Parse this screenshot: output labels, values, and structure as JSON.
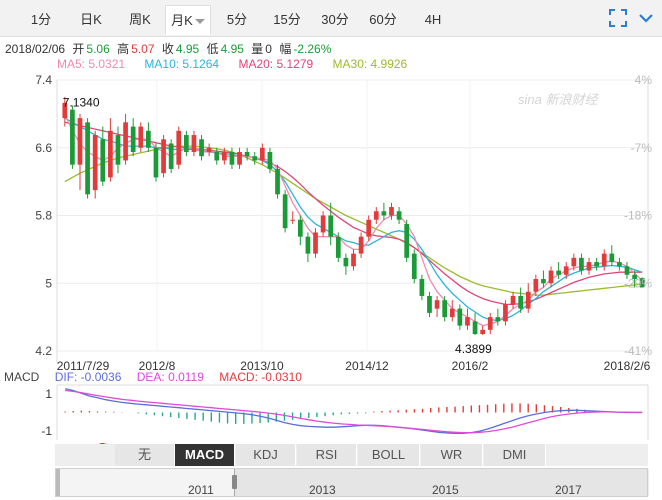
{
  "tabs": [
    {
      "label": "1分",
      "active": false
    },
    {
      "label": "日K",
      "active": false
    },
    {
      "label": "周K",
      "active": false
    },
    {
      "label": "月K",
      "active": true
    },
    {
      "label": "5分",
      "active": false
    },
    {
      "label": "15分",
      "active": false
    },
    {
      "label": "30分",
      "active": false
    },
    {
      "label": "60分",
      "active": false
    },
    {
      "label": "4H",
      "active": false
    }
  ],
  "toolbar": {
    "fullscreen_icon": "fullscreen-icon",
    "menu_icon": "chevron-down-icon"
  },
  "info": {
    "date": "2018/02/06",
    "open_label": "开",
    "open": "5.06",
    "high_label": "高",
    "high": "5.07",
    "close_label": "收",
    "close": "4.95",
    "low_label": "低",
    "low": "4.95",
    "volume_label": "量",
    "volume": "0",
    "change_label": "幅",
    "change": "-2.26%"
  },
  "ma_legend": {
    "ma5": "MA5: 5.0321",
    "ma10": "MA10: 5.1264",
    "ma20": "MA20: 5.1279",
    "ma30": "MA30: 4.9926"
  },
  "watermark": "sina 新浪财经",
  "colors": {
    "up": "#e03c3c",
    "down": "#1b9b37",
    "ma5": "#f08ab0",
    "ma10": "#2bb5d8",
    "ma20": "#e0457a",
    "ma30": "#9bbb2a",
    "dif": "#5b6fd8",
    "dea": "#e04ad8",
    "macd_label": "#e03c3c"
  },
  "macd_legend": {
    "name": "MACD",
    "dif": "DIF: -0.0036",
    "dea": "DEA: 0.0119",
    "macd": "MACD: -0.0310"
  },
  "indicator_tabs": [
    {
      "label": "无",
      "active": false
    },
    {
      "label": "MACD",
      "active": true
    },
    {
      "label": "KDJ",
      "active": false
    },
    {
      "label": "RSI",
      "active": false
    },
    {
      "label": "BOLL",
      "active": false
    },
    {
      "label": "WR",
      "active": false
    },
    {
      "label": "DMI",
      "active": false
    }
  ],
  "indicator_badge": "1",
  "navigator": {
    "year_labels": [
      "2011",
      "2013",
      "2015",
      "2017"
    ]
  },
  "chart_data": [
    {
      "type": "candlestick",
      "title": "",
      "y_ticks": [
        "7.4",
        "6.6",
        "5.8",
        "5",
        "4.2"
      ],
      "y_tick_values": [
        7.4,
        6.6,
        5.8,
        5.0,
        4.2
      ],
      "pct_ticks": [
        "4%",
        "-7%",
        "-18%",
        "-29%",
        "-41%"
      ],
      "x_tick_labels": [
        "2011/7/29",
        "2012/8",
        "2013/10",
        "2014/12",
        "2016/2",
        "2018/2/6"
      ],
      "ylim": [
        4.2,
        7.4
      ],
      "annotations": [
        {
          "label": "7.1340",
          "value": 7.134
        },
        {
          "label": "4.3899",
          "value": 4.3899
        }
      ],
      "candles": [
        [
          6.95,
          7.13,
          7.2,
          6.85
        ],
        [
          7.05,
          6.4,
          7.1,
          6.35
        ],
        [
          6.4,
          6.95,
          7.0,
          6.1
        ],
        [
          6.9,
          6.05,
          6.95,
          6.0
        ],
        [
          6.1,
          6.75,
          6.8,
          6.0
        ],
        [
          6.7,
          6.2,
          6.85,
          6.15
        ],
        [
          6.25,
          6.8,
          6.95,
          6.2
        ],
        [
          6.75,
          6.4,
          6.85,
          6.3
        ],
        [
          6.45,
          6.9,
          7.0,
          6.4
        ],
        [
          6.85,
          6.55,
          6.95,
          6.5
        ],
        [
          6.6,
          6.85,
          6.9,
          6.55
        ],
        [
          6.8,
          6.6,
          6.9,
          6.55
        ],
        [
          6.6,
          6.25,
          6.65,
          6.2
        ],
        [
          6.3,
          6.7,
          6.75,
          6.25
        ],
        [
          6.65,
          6.35,
          6.7,
          6.3
        ],
        [
          6.4,
          6.8,
          6.85,
          6.35
        ],
        [
          6.75,
          6.55,
          6.8,
          6.5
        ],
        [
          6.55,
          6.75,
          6.8,
          6.5
        ],
        [
          6.7,
          6.5,
          6.75,
          6.45
        ],
        [
          6.55,
          6.6,
          6.65,
          6.5
        ],
        [
          6.55,
          6.45,
          6.6,
          6.4
        ],
        [
          6.45,
          6.55,
          6.6,
          6.4
        ],
        [
          6.55,
          6.4,
          6.6,
          6.35
        ],
        [
          6.4,
          6.55,
          6.6,
          6.35
        ],
        [
          6.55,
          6.5,
          6.6,
          6.45
        ],
        [
          6.5,
          6.45,
          6.55,
          6.4
        ],
        [
          6.45,
          6.6,
          6.65,
          6.4
        ],
        [
          6.55,
          6.35,
          6.6,
          6.3
        ],
        [
          6.35,
          6.05,
          6.4,
          6.0
        ],
        [
          6.05,
          5.65,
          6.1,
          5.6
        ],
        [
          5.75,
          5.75,
          5.85,
          5.7
        ],
        [
          5.75,
          5.55,
          5.8,
          5.45
        ],
        [
          5.55,
          5.35,
          5.6,
          5.25
        ],
        [
          5.35,
          5.6,
          5.65,
          5.3
        ],
        [
          5.6,
          5.8,
          5.85,
          5.55
        ],
        [
          5.8,
          5.55,
          5.95,
          5.45
        ],
        [
          5.55,
          5.3,
          5.6,
          5.25
        ],
        [
          5.3,
          5.2,
          5.35,
          5.1
        ],
        [
          5.2,
          5.35,
          5.4,
          5.15
        ],
        [
          5.35,
          5.55,
          5.6,
          5.3
        ],
        [
          5.55,
          5.75,
          5.8,
          5.5
        ],
        [
          5.75,
          5.85,
          5.9,
          5.7
        ],
        [
          5.85,
          5.8,
          5.95,
          5.75
        ],
        [
          5.8,
          5.9,
          5.95,
          5.75
        ],
        [
          5.85,
          5.75,
          5.9,
          5.7
        ],
        [
          5.7,
          5.3,
          5.75,
          5.25
        ],
        [
          5.35,
          5.05,
          5.4,
          5.0
        ],
        [
          5.05,
          4.85,
          5.1,
          4.8
        ],
        [
          4.85,
          4.65,
          4.9,
          4.6
        ],
        [
          4.7,
          4.8,
          4.85,
          4.6
        ],
        [
          4.8,
          4.6,
          4.85,
          4.55
        ],
        [
          4.6,
          4.7,
          4.8,
          4.55
        ],
        [
          4.7,
          4.5,
          4.75,
          4.45
        ],
        [
          4.5,
          4.6,
          4.7,
          4.45
        ],
        [
          4.55,
          4.4,
          4.65,
          4.39
        ],
        [
          4.4,
          4.45,
          4.5,
          4.39
        ],
        [
          4.45,
          4.6,
          4.65,
          4.4
        ],
        [
          4.6,
          4.55,
          4.7,
          4.5
        ],
        [
          4.55,
          4.75,
          4.8,
          4.5
        ],
        [
          4.75,
          4.85,
          4.9,
          4.7
        ],
        [
          4.85,
          4.7,
          4.95,
          4.65
        ],
        [
          4.7,
          4.9,
          5.0,
          4.65
        ],
        [
          4.9,
          5.05,
          5.1,
          4.85
        ],
        [
          5.05,
          5.0,
          5.15,
          4.95
        ],
        [
          5.0,
          5.15,
          5.2,
          4.95
        ],
        [
          5.15,
          5.1,
          5.25,
          5.05
        ],
        [
          5.1,
          5.2,
          5.25,
          5.05
        ],
        [
          5.2,
          5.3,
          5.35,
          5.15
        ],
        [
          5.3,
          5.15,
          5.35,
          5.1
        ],
        [
          5.15,
          5.25,
          5.3,
          5.1
        ],
        [
          5.25,
          5.2,
          5.3,
          5.15
        ],
        [
          5.2,
          5.35,
          5.4,
          5.15
        ],
        [
          5.35,
          5.25,
          5.45,
          5.2
        ],
        [
          5.25,
          5.2,
          5.3,
          5.15
        ],
        [
          5.2,
          5.1,
          5.25,
          5.05
        ],
        [
          5.1,
          5.05,
          5.15,
          4.95
        ],
        [
          5.06,
          4.95,
          5.07,
          4.95
        ]
      ],
      "ma5": [
        7.0,
        6.8,
        6.65,
        6.55,
        6.5,
        6.45,
        6.5,
        6.6,
        6.65,
        6.7,
        6.7,
        6.7,
        6.6,
        6.55,
        6.5,
        6.55,
        6.6,
        6.6,
        6.55,
        6.55,
        6.55,
        6.5,
        6.5,
        6.5,
        6.5,
        6.48,
        6.47,
        6.45,
        6.35,
        6.15,
        5.95,
        5.8,
        5.65,
        5.55,
        5.55,
        5.55,
        5.55,
        5.45,
        5.4,
        5.4,
        5.5,
        5.65,
        5.75,
        5.8,
        5.8,
        5.7,
        5.55,
        5.3,
        5.05,
        4.9,
        4.8,
        4.7,
        4.65,
        4.6,
        4.55,
        4.5,
        4.52,
        4.55,
        4.62,
        4.7,
        4.75,
        4.8,
        4.9,
        4.95,
        5.05,
        5.1,
        5.15,
        5.18,
        5.2,
        5.2,
        5.22,
        5.25,
        5.26,
        5.24,
        5.2,
        5.12,
        5.03
      ],
      "ma10": [
        6.95,
        6.9,
        6.85,
        6.8,
        6.75,
        6.7,
        6.68,
        6.65,
        6.62,
        6.62,
        6.62,
        6.62,
        6.6,
        6.6,
        6.58,
        6.58,
        6.58,
        6.58,
        6.56,
        6.55,
        6.54,
        6.53,
        6.52,
        6.5,
        6.5,
        6.48,
        6.45,
        6.4,
        6.32,
        6.2,
        6.05,
        5.9,
        5.78,
        5.7,
        5.65,
        5.6,
        5.55,
        5.5,
        5.48,
        5.45,
        5.45,
        5.5,
        5.55,
        5.6,
        5.62,
        5.6,
        5.52,
        5.4,
        5.25,
        5.1,
        4.98,
        4.88,
        4.8,
        4.72,
        4.66,
        4.6,
        4.57,
        4.56,
        4.58,
        4.62,
        4.68,
        4.75,
        4.82,
        4.9,
        4.96,
        5.02,
        5.08,
        5.12,
        5.15,
        5.18,
        5.19,
        5.2,
        5.21,
        5.2,
        5.19,
        5.16,
        5.13
      ],
      "ma20": [
        6.9,
        6.88,
        6.86,
        6.84,
        6.82,
        6.8,
        6.78,
        6.76,
        6.74,
        6.72,
        6.7,
        6.68,
        6.66,
        6.64,
        6.62,
        6.61,
        6.6,
        6.59,
        6.58,
        6.57,
        6.56,
        6.55,
        6.54,
        6.52,
        6.5,
        6.48,
        6.45,
        6.42,
        6.38,
        6.32,
        6.25,
        6.17,
        6.08,
        6.0,
        5.92,
        5.85,
        5.78,
        5.72,
        5.66,
        5.62,
        5.58,
        5.56,
        5.55,
        5.54,
        5.52,
        5.48,
        5.42,
        5.35,
        5.27,
        5.19,
        5.11,
        5.04,
        4.97,
        4.91,
        4.86,
        4.82,
        4.79,
        4.77,
        4.75,
        4.75,
        4.76,
        4.78,
        4.81,
        4.85,
        4.89,
        4.93,
        4.97,
        5.01,
        5.04,
        5.07,
        5.09,
        5.11,
        5.12,
        5.13,
        5.13,
        5.13,
        5.13
      ],
      "ma30": [
        6.2,
        6.25,
        6.3,
        6.34,
        6.38,
        6.42,
        6.45,
        6.48,
        6.5,
        6.52,
        6.54,
        6.56,
        6.58,
        6.6,
        6.61,
        6.62,
        6.62,
        6.62,
        6.61,
        6.6,
        6.59,
        6.57,
        6.55,
        6.52,
        6.48,
        6.44,
        6.4,
        6.35,
        6.3,
        6.24,
        6.18,
        6.12,
        6.06,
        6.0,
        5.95,
        5.9,
        5.85,
        5.8,
        5.76,
        5.72,
        5.68,
        5.64,
        5.6,
        5.56,
        5.52,
        5.47,
        5.42,
        5.36,
        5.3,
        5.24,
        5.18,
        5.13,
        5.08,
        5.04,
        5.0,
        4.97,
        4.95,
        4.93,
        4.91,
        4.89,
        4.88,
        4.87,
        4.86,
        4.86,
        4.87,
        4.88,
        4.89,
        4.9,
        4.91,
        4.92,
        4.93,
        4.94,
        4.95,
        4.96,
        4.97,
        4.98,
        4.99
      ]
    },
    {
      "type": "macd",
      "y_ticks": [
        "1",
        "-1"
      ],
      "y_tick_values": [
        1,
        -1
      ],
      "ylim": [
        -1.5,
        1.5
      ],
      "dif": [
        1.3,
        1.2,
        1.05,
        0.9,
        0.8,
        0.7,
        0.62,
        0.55,
        0.5,
        0.46,
        0.42,
        0.38,
        0.34,
        0.3,
        0.26,
        0.22,
        0.18,
        0.14,
        0.1,
        0.06,
        0.02,
        -0.02,
        -0.06,
        -0.12,
        -0.2,
        -0.3,
        -0.42,
        -0.55,
        -0.65,
        -0.72,
        -0.76,
        -0.78,
        -0.8,
        -0.8,
        -0.78,
        -0.75,
        -0.72,
        -0.7,
        -0.7,
        -0.72,
        -0.76,
        -0.8,
        -0.85,
        -0.9,
        -0.96,
        -1.02,
        -1.08,
        -1.12,
        -1.14,
        -1.14,
        -1.1,
        -1.02,
        -0.9,
        -0.76,
        -0.6,
        -0.45,
        -0.3,
        -0.18,
        -0.08,
        0.0,
        0.06,
        0.1,
        0.12,
        0.12,
        0.1,
        0.08,
        0.06,
        0.04,
        0.02,
        0.0,
        -0.002,
        -0.0036
      ],
      "dea": [
        1.2,
        1.15,
        1.08,
        1.0,
        0.92,
        0.85,
        0.78,
        0.72,
        0.67,
        0.62,
        0.58,
        0.54,
        0.5,
        0.46,
        0.42,
        0.38,
        0.34,
        0.3,
        0.26,
        0.22,
        0.18,
        0.14,
        0.1,
        0.06,
        0.02,
        -0.03,
        -0.09,
        -0.16,
        -0.24,
        -0.32,
        -0.4,
        -0.47,
        -0.53,
        -0.58,
        -0.62,
        -0.65,
        -0.68,
        -0.7,
        -0.72,
        -0.74,
        -0.77,
        -0.8,
        -0.84,
        -0.88,
        -0.92,
        -0.97,
        -1.01,
        -1.05,
        -1.08,
        -1.1,
        -1.1,
        -1.08,
        -1.04,
        -0.98,
        -0.9,
        -0.8,
        -0.68,
        -0.56,
        -0.44,
        -0.32,
        -0.22,
        -0.14,
        -0.08,
        -0.03,
        0.0,
        0.02,
        0.03,
        0.03,
        0.02,
        0.015,
        0.013,
        0.0119
      ],
      "hist": [
        0.05,
        0.08,
        0.1,
        0.08,
        0.06,
        0.05,
        0.04,
        0.02,
        0.0,
        -0.05,
        -0.1,
        -0.15,
        -0.2,
        -0.25,
        -0.3,
        -0.35,
        -0.4,
        -0.45,
        -0.5,
        -0.55,
        -0.6,
        -0.62,
        -0.62,
        -0.6,
        -0.58,
        -0.55,
        -0.5,
        -0.45,
        -0.4,
        -0.35,
        -0.3,
        -0.25,
        -0.2,
        -0.15,
        -0.1,
        -0.08,
        -0.06,
        -0.05,
        0.05,
        0.08,
        0.1,
        0.12,
        0.15,
        0.18,
        0.2,
        0.25,
        0.28,
        0.3,
        0.32,
        0.35,
        0.38,
        0.4,
        0.42,
        0.45,
        0.48,
        0.5,
        0.5,
        0.48,
        0.45,
        0.4,
        0.35,
        0.3,
        0.25,
        0.2,
        0.15,
        0.1,
        0.05,
        0.02,
        0.0,
        -0.01,
        -0.02,
        -0.031
      ]
    }
  ]
}
